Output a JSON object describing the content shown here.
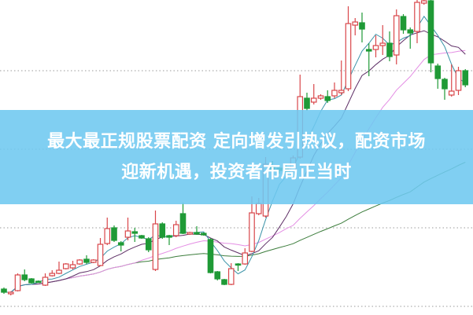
{
  "headline": {
    "line1": "最大最正规股票配资 定向增发引热议，配资市场",
    "line2": "迎新机遇，投资者布局正当时"
  },
  "colors": {
    "up": "#d9464a",
    "down": "#1f9a36",
    "banner": "#6ec8f0",
    "ma5": "#3b93a8",
    "ma10": "#5e2f66",
    "ma20": "#e48ee4",
    "ma60": "#3c7d3c",
    "grid": "#999999"
  },
  "chart_data": {
    "type": "candlestick",
    "title": "",
    "xlabel": "",
    "ylabel": "",
    "ylim": [
      0,
      401
    ],
    "grid": true,
    "grid_levels": [
      311,
      211,
      111,
      11
    ],
    "moving_averages": [
      5,
      10,
      20,
      60
    ],
    "ohlc": [
      [
        33,
        35,
        27,
        29
      ],
      [
        27,
        30,
        25,
        29
      ],
      [
        31,
        53,
        30,
        51
      ],
      [
        51,
        58,
        43,
        45
      ],
      [
        46,
        47,
        40,
        41
      ],
      [
        43,
        44,
        41,
        42
      ],
      [
        38,
        53,
        37,
        48
      ],
      [
        50,
        57,
        49,
        53
      ],
      [
        53,
        68,
        52,
        57
      ],
      [
        59,
        66,
        58,
        65
      ],
      [
        60,
        69,
        58,
        64
      ],
      [
        65,
        71,
        64,
        70
      ],
      [
        71,
        76,
        65,
        67
      ],
      [
        67,
        71,
        66,
        70
      ],
      [
        63,
        98,
        62,
        90
      ],
      [
        91,
        124,
        89,
        110
      ],
      [
        111,
        114,
        93,
        95
      ],
      [
        92,
        94,
        81,
        89
      ],
      [
        99,
        124,
        95,
        107
      ],
      [
        106,
        111,
        93,
        104
      ],
      [
        101,
        102,
        97,
        98
      ],
      [
        97,
        99,
        80,
        83
      ],
      [
        58,
        133,
        56,
        116
      ],
      [
        116,
        118,
        97,
        99
      ],
      [
        101,
        102,
        89,
        99
      ],
      [
        101,
        120,
        99,
        115
      ],
      [
        129,
        143,
        103,
        104
      ],
      [
        103,
        106,
        102,
        105
      ],
      [
        105,
        113,
        102,
        103
      ],
      [
        104,
        105,
        101,
        102
      ],
      [
        96,
        98,
        53,
        54
      ],
      [
        55,
        56,
        44,
        46
      ],
      [
        45,
        46,
        38,
        39
      ],
      [
        39,
        66,
        38,
        59
      ],
      [
        65,
        66,
        56,
        64
      ],
      [
        65,
        85,
        64,
        79
      ],
      [
        81,
        151,
        80,
        130
      ],
      [
        129,
        149,
        127,
        142
      ],
      [
        126,
        201,
        124,
        192
      ],
      [
        188,
        196,
        176,
        183
      ],
      [
        187,
        190,
        180,
        184
      ],
      [
        187,
        192,
        182,
        183
      ],
      [
        184,
        203,
        182,
        200
      ],
      [
        201,
        306,
        199,
        278
      ],
      [
        276,
        283,
        260,
        263
      ],
      [
        271,
        294,
        268,
        276
      ],
      [
        276,
        281,
        274,
        279
      ],
      [
        278,
        286,
        270,
        273
      ],
      [
        279,
        296,
        276,
        286
      ],
      [
        283,
        324,
        280,
        286
      ],
      [
        288,
        393,
        285,
        371
      ],
      [
        369,
        378,
        356,
        373
      ],
      [
        372,
        385,
        347,
        364
      ],
      [
        338,
        346,
        304,
        336
      ],
      [
        338,
        356,
        328,
        343
      ],
      [
        343,
        369,
        331,
        346
      ],
      [
        346,
        361,
        323,
        329
      ],
      [
        331,
        389,
        319,
        381
      ],
      [
        380,
        383,
        358,
        363
      ],
      [
        363,
        366,
        339,
        359
      ],
      [
        361,
        401,
        346,
        398
      ],
      [
        397,
        401,
        395,
        400
      ],
      [
        400,
        401,
        309,
        321
      ],
      [
        317,
        320,
        288,
        301
      ],
      [
        300,
        302,
        274,
        288
      ],
      [
        280,
        319,
        278,
        285
      ],
      [
        286,
        316,
        280,
        311
      ],
      [
        311,
        313,
        290,
        293
      ]
    ]
  }
}
